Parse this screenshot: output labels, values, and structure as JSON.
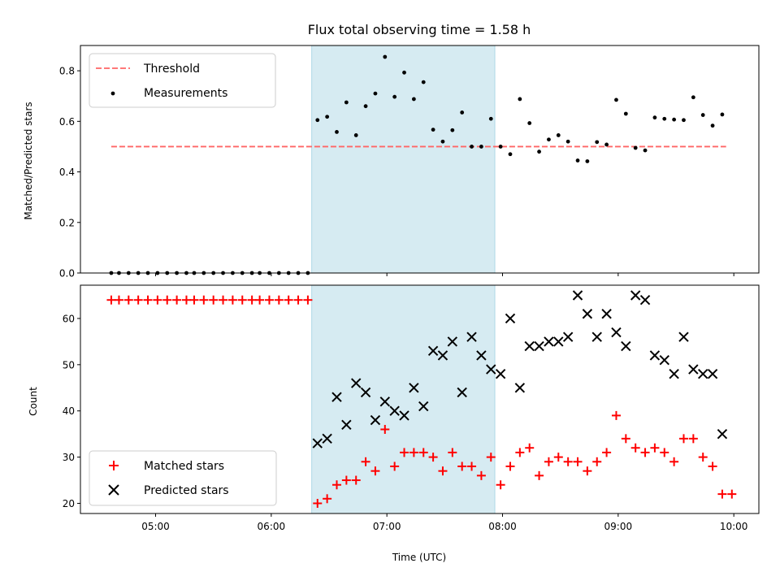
{
  "chart_data": [
    {
      "type": "scatter",
      "title": "Flux total observing time = 1.58 h",
      "ylabel": "Matched/Predicted stars",
      "xlabel": "",
      "xlim": [
        "04:21",
        "10:13"
      ],
      "ylim": [
        0,
        0.9
      ],
      "yticks": [
        0.0,
        0.2,
        0.4,
        0.6,
        0.8
      ],
      "ytick_labels": [
        "0.0",
        "0.2",
        "0.4",
        "0.6",
        "0.8"
      ],
      "xticks": [
        "05:00",
        "06:00",
        "07:00",
        "08:00",
        "09:00",
        "10:00"
      ],
      "shaded_interval": {
        "start": "06:21",
        "end": "07:56",
        "color": "#add8e6"
      },
      "legend": {
        "position": "top-left",
        "entries": [
          {
            "label": "Threshold"
          },
          {
            "label": "Measurements"
          }
        ]
      },
      "threshold": {
        "name": "Threshold",
        "value": 0.5,
        "x_start": "04:37",
        "x_end": "09:56",
        "color": "#ff6666",
        "style": "dashed"
      },
      "series": [
        {
          "name": "Measurements",
          "color": "#000000",
          "marker": "dot",
          "x": [
            "04:37",
            "04:41",
            "04:46",
            "04:51",
            "04:56",
            "05:01",
            "05:06",
            "05:11",
            "05:16",
            "05:20",
            "05:25",
            "05:30",
            "05:35",
            "05:40",
            "05:45",
            "05:50",
            "05:54",
            "05:59",
            "06:04",
            "06:09",
            "06:14",
            "06:19",
            "06:24",
            "06:29",
            "06:34",
            "06:39",
            "06:44",
            "06:49",
            "06:54",
            "06:59",
            "07:04",
            "07:09",
            "07:14",
            "07:19",
            "07:24",
            "07:29",
            "07:34",
            "07:39",
            "07:44",
            "07:49",
            "07:54",
            "07:59",
            "08:04",
            "08:09",
            "08:14",
            "08:19",
            "08:24",
            "08:29",
            "08:34",
            "08:39",
            "08:44",
            "08:49",
            "08:54",
            "08:59",
            "09:04",
            "09:09",
            "09:14",
            "09:19",
            "09:24",
            "09:29",
            "09:34",
            "09:39",
            "09:44",
            "09:49",
            "09:54"
          ],
          "y": [
            0,
            0,
            0,
            0,
            0,
            0,
            0,
            0,
            0,
            0,
            0,
            0,
            0,
            0,
            0,
            0,
            0,
            0,
            0,
            0,
            0,
            0,
            0.605,
            0.618,
            0.558,
            0.675,
            0.545,
            0.66,
            0.71,
            0.855,
            0.697,
            0.793,
            0.688,
            0.755,
            0.567,
            0.52,
            0.565,
            0.635,
            0.5,
            0.5,
            0.61,
            0.5,
            0.47,
            0.688,
            0.593,
            0.48,
            0.528,
            0.545,
            0.52,
            0.445,
            0.442,
            0.518,
            0.508,
            0.685,
            0.63,
            0.495,
            0.485,
            0.615,
            0.61,
            0.607,
            0.605,
            0.695,
            0.625,
            0.583,
            0.627
          ]
        }
      ]
    },
    {
      "type": "scatter",
      "title": "",
      "ylabel": "Count",
      "xlabel": "Time (UTC)",
      "xlim": [
        "04:21",
        "10:13"
      ],
      "ylim": [
        17.8,
        67.2
      ],
      "yticks": [
        20,
        30,
        40,
        50,
        60
      ],
      "ytick_labels": [
        "20",
        "30",
        "40",
        "50",
        "60"
      ],
      "xticks": [
        "05:00",
        "06:00",
        "07:00",
        "08:00",
        "09:00",
        "10:00"
      ],
      "xtick_labels": [
        "05:00",
        "06:00",
        "07:00",
        "08:00",
        "09:00",
        "10:00"
      ],
      "shaded_interval": {
        "start": "06:21",
        "end": "07:56",
        "color": "#add8e6"
      },
      "legend": {
        "position": "bottom-left",
        "entries": [
          {
            "label": "Matched stars"
          },
          {
            "label": "Predicted stars"
          }
        ]
      },
      "series": [
        {
          "name": "Matched stars",
          "color": "#ff0000",
          "marker": "plus",
          "x": [
            "04:37",
            "04:41",
            "04:46",
            "04:51",
            "04:56",
            "05:01",
            "05:06",
            "05:11",
            "05:16",
            "05:20",
            "05:25",
            "05:30",
            "05:35",
            "05:40",
            "05:45",
            "05:50",
            "05:54",
            "05:59",
            "06:04",
            "06:09",
            "06:14",
            "06:19",
            "06:24",
            "06:29",
            "06:34",
            "06:39",
            "06:44",
            "06:49",
            "06:54",
            "06:59",
            "07:04",
            "07:09",
            "07:14",
            "07:19",
            "07:24",
            "07:29",
            "07:34",
            "07:39",
            "07:44",
            "07:49",
            "07:54",
            "07:59",
            "08:04",
            "08:09",
            "08:14",
            "08:19",
            "08:24",
            "08:29",
            "08:34",
            "08:39",
            "08:44",
            "08:49",
            "08:54",
            "08:59",
            "09:04",
            "09:09",
            "09:14",
            "09:19",
            "09:24",
            "09:29",
            "09:34",
            "09:39",
            "09:44",
            "09:49",
            "09:54",
            "09:59"
          ],
          "y": [
            64,
            64,
            64,
            64,
            64,
            64,
            64,
            64,
            64,
            64,
            64,
            64,
            64,
            64,
            64,
            64,
            64,
            64,
            64,
            64,
            64,
            64,
            20,
            21,
            24,
            25,
            25,
            29,
            27,
            36,
            28,
            31,
            31,
            31,
            30,
            27,
            31,
            28,
            28,
            26,
            30,
            24,
            28,
            31,
            32,
            26,
            29,
            30,
            29,
            29,
            27,
            29,
            31,
            39,
            34,
            32,
            31,
            32,
            31,
            29,
            34,
            34,
            30,
            28,
            22,
            22
          ]
        },
        {
          "name": "Predicted stars",
          "color": "#000000",
          "marker": "x",
          "x": [
            "06:24",
            "06:29",
            "06:34",
            "06:39",
            "06:44",
            "06:49",
            "06:54",
            "06:59",
            "07:04",
            "07:09",
            "07:14",
            "07:19",
            "07:24",
            "07:29",
            "07:34",
            "07:39",
            "07:44",
            "07:49",
            "07:54",
            "07:59",
            "08:04",
            "08:09",
            "08:14",
            "08:19",
            "08:24",
            "08:29",
            "08:34",
            "08:39",
            "08:44",
            "08:49",
            "08:54",
            "08:59",
            "09:04",
            "09:09",
            "09:14",
            "09:19",
            "09:24",
            "09:29",
            "09:34",
            "09:39",
            "09:44",
            "09:49",
            "09:54"
          ],
          "y": [
            33,
            34,
            43,
            37,
            46,
            44,
            38,
            42,
            40,
            39,
            45,
            41,
            53,
            52,
            55,
            44,
            56,
            52,
            49,
            48,
            60,
            45,
            54,
            54,
            55,
            55,
            56,
            65,
            61,
            56,
            61,
            57,
            54,
            65,
            64,
            52,
            51,
            48,
            56,
            49,
            48,
            48,
            35
          ]
        }
      ]
    }
  ]
}
